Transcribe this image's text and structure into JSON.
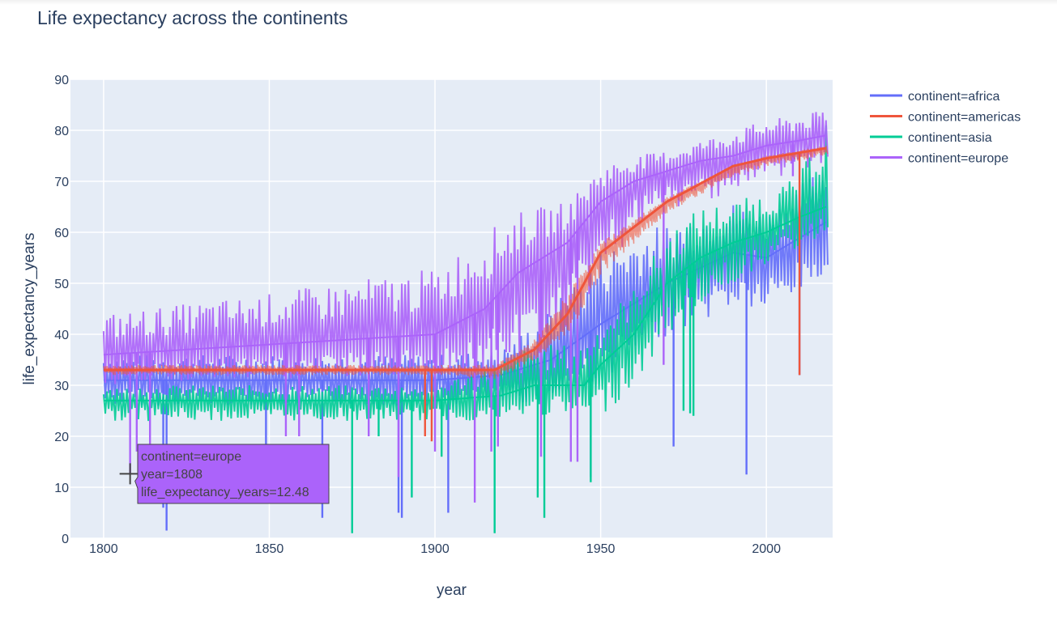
{
  "chart_data": {
    "type": "line",
    "title": "Life expectancy across the continents",
    "xlabel": "year",
    "ylabel": "life_expectancy_years",
    "xlim": [
      1790,
      2020
    ],
    "ylim": [
      0,
      90
    ],
    "x_ticks": [
      1800,
      1850,
      1900,
      1950,
      2000
    ],
    "y_ticks": [
      0,
      10,
      20,
      30,
      40,
      50,
      60,
      70,
      80,
      90
    ],
    "grid": true,
    "legend_position": "top-right, outside plot",
    "series": [
      {
        "name": "continent=africa",
        "color": "#636efa",
        "envelope": {
          "x": [
            1800,
            1850,
            1900,
            1920,
            1935,
            1950,
            1970,
            1990,
            2000,
            2018
          ],
          "upper": [
            36,
            36,
            36,
            37,
            45,
            57,
            62,
            66,
            64,
            74
          ],
          "typical": [
            31,
            31,
            31,
            32,
            35,
            42,
            50,
            56,
            55,
            62
          ],
          "lower": [
            26,
            26,
            26,
            26,
            27,
            31,
            40,
            45,
            44,
            51
          ]
        },
        "dips": [
          [
            1819,
            1.5
          ],
          [
            1818,
            6
          ],
          [
            1849,
            18
          ],
          [
            1866,
            4
          ],
          [
            1889,
            5
          ],
          [
            1890,
            4
          ],
          [
            1904,
            5
          ],
          [
            1947,
            12
          ],
          [
            1972,
            18
          ],
          [
            1994,
            12.5
          ],
          [
            2010,
            32
          ]
        ]
      },
      {
        "name": "continent=americas",
        "color": "#ef553b",
        "envelope": {
          "x": [
            1800,
            1850,
            1900,
            1918,
            1930,
            1940,
            1950,
            1970,
            1990,
            2000,
            2018
          ],
          "upper": [
            34,
            34,
            34,
            34,
            39,
            48,
            58,
            67,
            73,
            75,
            77
          ],
          "typical": [
            33,
            33,
            33,
            33,
            37,
            44,
            56,
            66,
            73,
            74.5,
            76.5
          ],
          "lower": [
            32,
            32,
            32,
            31,
            35,
            40,
            52,
            64,
            71,
            73,
            75
          ]
        },
        "dips": [
          [
            1897,
            20
          ],
          [
            1899,
            19
          ],
          [
            2010,
            32
          ]
        ]
      },
      {
        "name": "continent=asia",
        "color": "#00cc96",
        "envelope": {
          "x": [
            1800,
            1850,
            1900,
            1920,
            1930,
            1945,
            1950,
            1960,
            1970,
            1980,
            1990,
            2000,
            2010,
            2018
          ],
          "upper": [
            30,
            30,
            30,
            35,
            38,
            38,
            43,
            49,
            60,
            65,
            66,
            68,
            71,
            84
          ],
          "typical": [
            27,
            27,
            27,
            28,
            30,
            30,
            34,
            40,
            50,
            55,
            58,
            60,
            63,
            65
          ],
          "lower": [
            23,
            23,
            23,
            23,
            24,
            24,
            24,
            30,
            40,
            46,
            50,
            54,
            57,
            60
          ]
        },
        "dips": [
          [
            1875,
            1
          ],
          [
            1883,
            20
          ],
          [
            1893,
            8
          ],
          [
            1902,
            16
          ],
          [
            1918,
            1
          ],
          [
            1931,
            8
          ],
          [
            1933,
            4
          ],
          [
            1947,
            11
          ],
          [
            1975,
            25
          ],
          [
            1977,
            24.5
          ],
          [
            1978,
            24
          ]
        ]
      },
      {
        "name": "continent=europe",
        "color": "#ab63fa",
        "envelope": {
          "x": [
            1800,
            1850,
            1900,
            1915,
            1925,
            1940,
            1950,
            1960,
            1970,
            1980,
            1990,
            2000,
            2010,
            2018
          ],
          "upper": [
            44,
            48,
            53,
            60,
            64,
            66,
            73,
            75,
            76,
            78,
            80,
            82,
            83,
            84
          ],
          "typical": [
            36,
            38,
            40,
            45,
            52,
            58,
            66,
            70,
            72,
            74,
            75,
            77,
            78,
            79
          ],
          "lower": [
            30,
            31,
            32,
            32,
            33,
            40,
            52,
            60,
            64,
            66,
            68,
            70,
            72,
            73
          ]
        },
        "dips": [
          [
            1808,
            12.48
          ],
          [
            1810,
            17
          ],
          [
            1814,
            16
          ],
          [
            1855,
            20
          ],
          [
            1859,
            20
          ],
          [
            1880,
            20
          ],
          [
            1889,
            12
          ],
          [
            1900,
            17
          ],
          [
            1912,
            7
          ],
          [
            1917,
            17
          ],
          [
            1919,
            18
          ],
          [
            1932,
            16
          ],
          [
            1941,
            15
          ],
          [
            1943,
            15
          ],
          [
            1969,
            34
          ],
          [
            2008,
            71
          ]
        ]
      }
    ]
  },
  "legend": [
    {
      "label": "continent=africa",
      "color": "#636efa"
    },
    {
      "label": "continent=americas",
      "color": "#ef553b"
    },
    {
      "label": "continent=asia",
      "color": "#00cc96"
    },
    {
      "label": "continent=europe",
      "color": "#ab63fa"
    }
  ],
  "tooltip": {
    "line1": "continent=europe",
    "line2": "year=1808",
    "line3": "life_expectancy_years=12.48",
    "point_x": 1808,
    "point_y": 12.48,
    "bg_color": "#ab63fa"
  }
}
